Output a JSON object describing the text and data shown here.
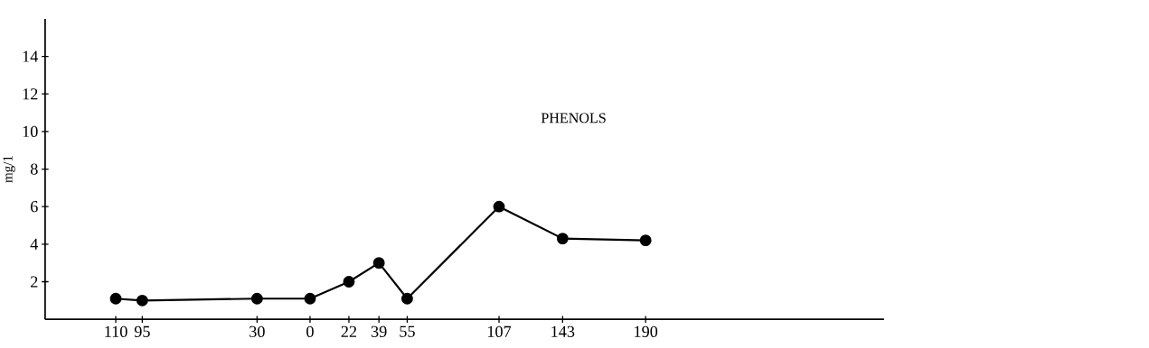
{
  "chart_data": {
    "type": "line",
    "ylabel": "mg/1",
    "annotations": [
      "PHENOLS"
    ],
    "x": [
      -110,
      -95,
      -30,
      0,
      22,
      39,
      55,
      107,
      143,
      190
    ],
    "series": [
      {
        "color": "#000000",
        "values": [
          1.1,
          1.0,
          1.1,
          1.1,
          2.0,
          3.0,
          1.1,
          6.0,
          4.3,
          4.2
        ]
      }
    ],
    "marker": "circle",
    "line_style": "solid",
    "xlim": [
      -150,
      325
    ],
    "xticks": [
      {
        "value": -110,
        "label": "110"
      },
      {
        "value": -95,
        "label": "95"
      },
      {
        "value": -30,
        "label": "30"
      },
      0,
      22,
      39,
      55,
      107,
      143,
      190
    ],
    "ylim": [
      0,
      16
    ],
    "yticks": [
      2,
      4,
      6,
      8,
      10,
      12,
      14
    ]
  }
}
